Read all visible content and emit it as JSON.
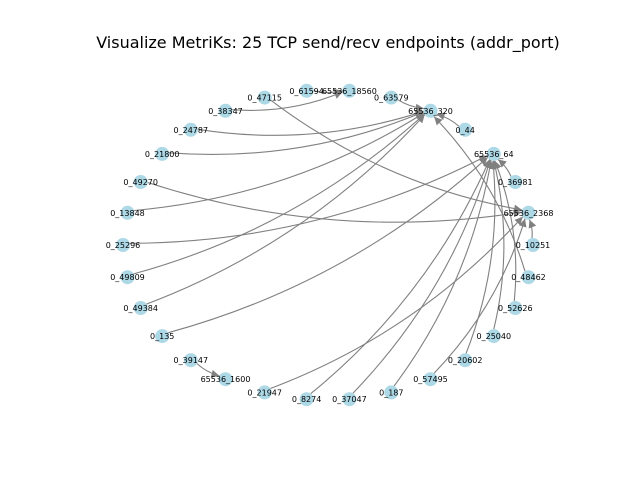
{
  "title": "Visualize MetriKs: 25 TCP send/recv endpoints (addr_port)",
  "colors": {
    "node": "#add8e6",
    "edge": "#808080",
    "label": "#000000"
  },
  "nodes": [
    {
      "id": "65536_18560",
      "label": "65536_18560"
    },
    {
      "id": "0_63579",
      "label": "0_63579"
    },
    {
      "id": "65536_320",
      "label": "65536_320"
    },
    {
      "id": "0_44",
      "label": "0_44"
    },
    {
      "id": "65536_64",
      "label": "65536_64"
    },
    {
      "id": "0_36981",
      "label": "0_36981"
    },
    {
      "id": "65536_2368",
      "label": "65536_2368"
    },
    {
      "id": "0_10251",
      "label": "0_10251"
    },
    {
      "id": "0_48462",
      "label": "0_48462"
    },
    {
      "id": "0_52626",
      "label": "0_52626"
    },
    {
      "id": "0_25040",
      "label": "0_25040"
    },
    {
      "id": "0_20602",
      "label": "0_20602"
    },
    {
      "id": "0_57495",
      "label": "0_57495"
    },
    {
      "id": "0_187",
      "label": "0_187"
    },
    {
      "id": "0_37047",
      "label": "0_37047"
    },
    {
      "id": "0_8274",
      "label": "0_8274"
    },
    {
      "id": "0_21947",
      "label": "0_21947"
    },
    {
      "id": "65536_1600",
      "label": "65536_1600"
    },
    {
      "id": "0_39147",
      "label": "0_39147"
    },
    {
      "id": "0_135",
      "label": "0_135"
    },
    {
      "id": "0_49384",
      "label": "0_49384"
    },
    {
      "id": "0_49809",
      "label": "0_49809"
    },
    {
      "id": "0_25296",
      "label": "0_25296"
    },
    {
      "id": "0_13848",
      "label": "0_13848"
    },
    {
      "id": "0_49270",
      "label": "0_49270"
    },
    {
      "id": "0_21800",
      "label": "0_21800"
    },
    {
      "id": "0_24787",
      "label": "0_24787"
    },
    {
      "id": "0_38347",
      "label": "0_38347"
    },
    {
      "id": "0_47115",
      "label": "0_47115"
    },
    {
      "id": "0_61594",
      "label": "0_61594"
    }
  ],
  "edges": [
    {
      "source": "0_61594",
      "target": "65536_18560"
    },
    {
      "source": "0_38347",
      "target": "65536_18560"
    },
    {
      "source": "0_63579",
      "target": "65536_320"
    },
    {
      "source": "0_44",
      "target": "65536_320"
    },
    {
      "source": "0_24787",
      "target": "65536_320"
    },
    {
      "source": "0_21800",
      "target": "65536_320"
    },
    {
      "source": "0_13848",
      "target": "65536_320"
    },
    {
      "source": "0_49809",
      "target": "65536_320"
    },
    {
      "source": "0_49384",
      "target": "65536_320"
    },
    {
      "source": "0_48462",
      "target": "65536_320"
    },
    {
      "source": "0_36981",
      "target": "65536_64"
    },
    {
      "source": "0_25296",
      "target": "65536_64"
    },
    {
      "source": "0_135",
      "target": "65536_64"
    },
    {
      "source": "0_52626",
      "target": "65536_64"
    },
    {
      "source": "0_25040",
      "target": "65536_64"
    },
    {
      "source": "0_20602",
      "target": "65536_64"
    },
    {
      "source": "0_187",
      "target": "65536_64"
    },
    {
      "source": "0_37047",
      "target": "65536_64"
    },
    {
      "source": "0_8274",
      "target": "65536_64"
    },
    {
      "source": "0_47115",
      "target": "65536_2368"
    },
    {
      "source": "0_49270",
      "target": "65536_2368"
    },
    {
      "source": "0_10251",
      "target": "65536_2368"
    },
    {
      "source": "0_57495",
      "target": "65536_2368"
    },
    {
      "source": "0_21947",
      "target": "65536_2368"
    },
    {
      "source": "0_39147",
      "target": "65536_1600"
    }
  ]
}
